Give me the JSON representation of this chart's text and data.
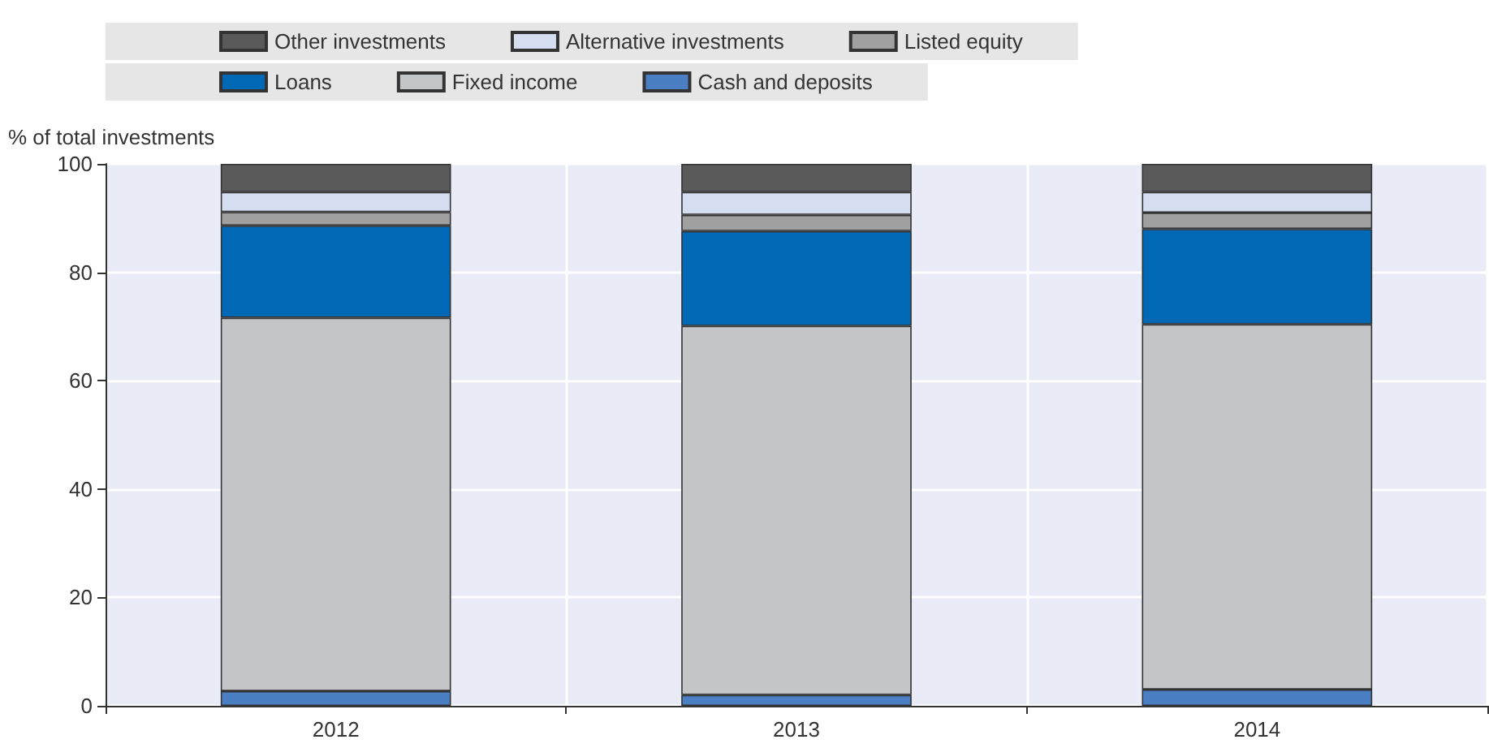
{
  "chart_data": {
    "type": "bar",
    "stacked": true,
    "ylabel": "% of total investments",
    "categories": [
      "2012",
      "2013",
      "2014"
    ],
    "series": [
      {
        "name": "Cash and deposits",
        "color": "#4a7fc4",
        "values": [
          2.7,
          2.0,
          3.0
        ]
      },
      {
        "name": "Fixed income",
        "color": "#c4c5c9",
        "values": [
          68.9,
          68.1,
          67.4
        ]
      },
      {
        "name": "Loans",
        "color": "#0068b4",
        "values": [
          17.0,
          17.5,
          17.6
        ]
      },
      {
        "name": "Listed equity",
        "color": "#a0a0a0",
        "values": [
          2.5,
          3.0,
          3.0
        ]
      },
      {
        "name": "Alternative investments",
        "color": "#d5ddf0",
        "values": [
          3.7,
          4.2,
          3.8
        ]
      },
      {
        "name": "Other investments",
        "color": "#5a5a5a",
        "values": [
          5.2,
          5.2,
          5.2
        ]
      }
    ],
    "ylim": [
      0,
      100
    ],
    "yticks": [
      0,
      20,
      40,
      60,
      80,
      100
    ],
    "grid": true,
    "legend": "top"
  }
}
